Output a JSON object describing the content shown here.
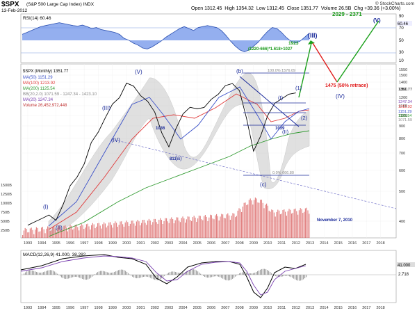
{
  "header": {
    "ticker": "$SPX",
    "subtitle": "(S&P 500 Large Cap Index)  INDX",
    "date": "13-Feb-2012",
    "open": "Open 1312.45",
    "high": "High 1354.32",
    "low": "Low 1312.45",
    "close": "Close 1351.77",
    "volume": "Volume 26.5B",
    "change": "Chg +39.36 (+3.00%)",
    "credit": "© StockCharts.com"
  },
  "rsi": {
    "label": "RSI(14) 60.46",
    "ticks": [
      "90",
      "70",
      "50",
      "30",
      "10"
    ],
    "right_value": "60.46",
    "color": "#3a6fd8",
    "values": [
      58,
      62,
      66,
      70,
      74,
      76,
      78,
      80,
      82,
      80,
      78,
      76,
      75,
      77,
      74,
      70,
      72,
      68,
      66,
      64,
      62,
      58,
      50,
      46,
      40,
      36,
      30,
      28,
      32,
      38,
      44,
      52,
      58,
      64,
      70,
      74,
      70,
      66,
      72,
      74,
      76,
      74,
      72,
      66,
      56,
      44,
      34,
      26,
      22,
      26,
      34,
      42,
      54,
      64,
      72,
      70,
      62,
      52,
      44,
      40,
      44,
      52,
      60.46
    ]
  },
  "price": {
    "legend": [
      {
        "text": "$SPX (Monthly) 1351.77",
        "color": "#000000"
      },
      {
        "text": "MA(50) 1151.29",
        "color": "#3a50c8"
      },
      {
        "text": "MA(100) 1213.92",
        "color": "#e03a3a"
      },
      {
        "text": "MA(200) 1125.54",
        "color": "#2f9a2f"
      },
      {
        "text": "BB(20,2.0) 1071.59 - 1247.34 - 1423.10",
        "color": "#888888"
      },
      {
        "text": "MA(20) 1247.34",
        "color": "#7a40b0"
      },
      {
        "text": "Volume 26,452,972,448",
        "color": "#c03030"
      }
    ],
    "right_ticks": [
      "1550",
      "1500",
      "1400",
      "1300",
      "1200",
      "1100",
      "1000",
      "900",
      "800",
      "700",
      "600",
      "500",
      "400"
    ],
    "left_volume_ticks": [
      "1500B",
      "1250B",
      "1000B",
      "750B",
      "500B",
      "250B"
    ],
    "right_labels": [
      "1351.77",
      "1247.34",
      "1213.92",
      "1151.29",
      "1125.54",
      "1071.59"
    ],
    "year_labels": [
      "1993",
      "1994",
      "1995",
      "1996",
      "1997",
      "1998",
      "1999",
      "2000",
      "2001",
      "2002",
      "2003",
      "2004",
      "2005",
      "2006",
      "2007",
      "2008",
      "2009",
      "2010",
      "2011",
      "2012",
      "2013",
      "2014",
      "2015",
      "2016",
      "2017",
      "2018"
    ],
    "annotations": {
      "target_range": "2029 - 2371",
      "wave_V_top": "(V)",
      "wave_III": "(III)",
      "ratio": "(1220-666)*1.618+1027",
      "value_1923": "1923",
      "retrace": "1475 (50% retrace)",
      "wave_IV_future": "(IV)",
      "wave_V_2000": "(V)",
      "wave_III_past": "(III)",
      "wave_IV_past": "(IV)",
      "wave_I_past": "(I)",
      "wave_II_past": "(II)",
      "wave_b": "(b)",
      "wave_a": "(a)",
      "wave_c": "(c)",
      "value_1036": "1036",
      "value_813": "813",
      "wave_I_recent": "(I)",
      "wave_1": "(1)",
      "wave_2": "(2)",
      "wave_II_recent": "(II)",
      "value_1039": "1039",
      "fib_100": "100.0%  1576.09",
      "fib_0": "0.0%  666.80",
      "date_note": "November 7, 2010"
    }
  },
  "macd": {
    "label": "MACD(12,26,9) 41.000, 38.282",
    "right_values": [
      "41.000",
      "2.718"
    ],
    "year_labels": [
      "1993",
      "1994",
      "1995",
      "1996",
      "1997",
      "1998",
      "1999",
      "2000",
      "2001",
      "2002",
      "2003",
      "2004",
      "2005",
      "2006",
      "2007",
      "2008",
      "2009",
      "2010",
      "2011",
      "2012",
      "2013",
      "2014",
      "2015",
      "2016",
      "2017",
      "2018"
    ]
  },
  "chart_data": {
    "type": "line",
    "title": "$SPX (S&P 500 Large Cap Index) INDX",
    "xlabel": "",
    "ylabel": "",
    "x": [
      1993,
      1994,
      1995,
      1996,
      1997,
      1998,
      1999,
      2000,
      2001,
      2002,
      2003,
      2004,
      2005,
      2006,
      2007,
      2008,
      2009,
      2010,
      2011,
      2012
    ],
    "series": [
      {
        "name": "$SPX (Monthly)",
        "values": [
          440,
          466,
          459,
          615,
          740,
          970,
          1229,
          1469,
          1320,
          1148,
          855,
          1131,
          1181,
          1280,
          1438,
          1378,
          825,
          1115,
          1286,
          1351.77
        ]
      },
      {
        "name": "MA(200)",
        "values": [
          340,
          355,
          370,
          390,
          410,
          440,
          480,
          520,
          560,
          600,
          640,
          680,
          720,
          760,
          800,
          840,
          880,
          960,
          1060,
          1125.54
        ]
      }
    ],
    "projection": [
      {
        "year": 2012.5,
        "value": 1550
      },
      {
        "year": 2014.5,
        "value": 1475
      },
      {
        "year": 2017.5,
        "value": 2371
      }
    ],
    "ylim": [
      400,
      1600
    ]
  }
}
